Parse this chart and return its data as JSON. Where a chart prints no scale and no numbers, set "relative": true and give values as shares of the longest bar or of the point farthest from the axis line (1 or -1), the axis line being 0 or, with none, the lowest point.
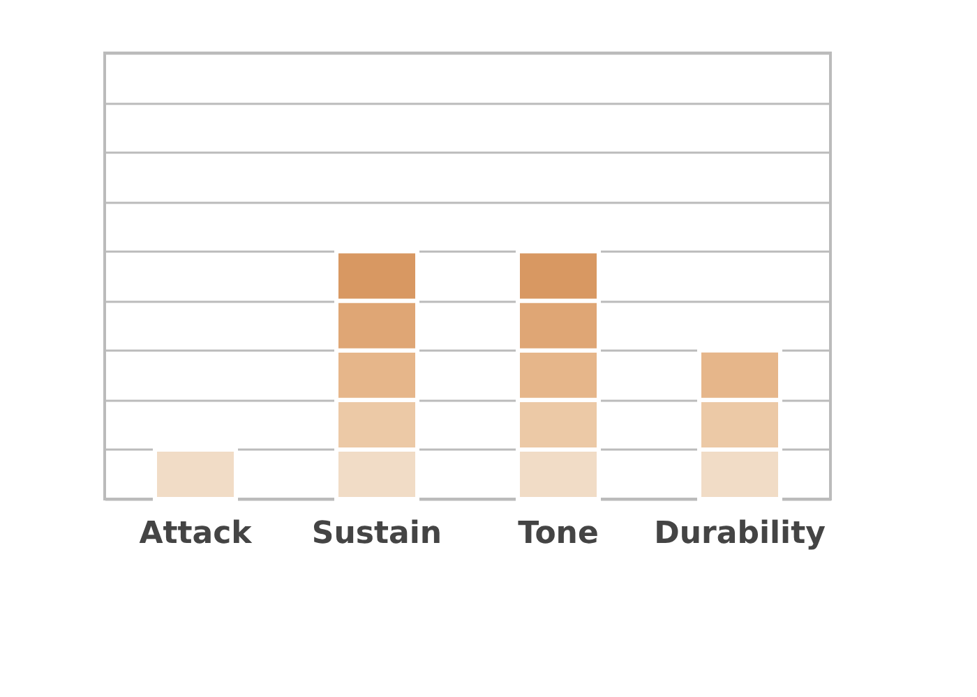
{
  "chart_data": {
    "type": "bar",
    "relative": true,
    "stacked": true,
    "grid": "y",
    "legend": false,
    "categories": [
      "Attack",
      "Sustain",
      "Tone",
      "Durability"
    ],
    "series": [
      {
        "color": "#f1dcc6",
        "values": [
          0.2,
          0.2,
          0.2,
          0.2
        ]
      },
      {
        "color": "#ecc9a6",
        "values": [
          null,
          0.2,
          0.2,
          0.2
        ]
      },
      {
        "color": "#e6b68a",
        "values": [
          null,
          0.2,
          0.2,
          0.2
        ]
      },
      {
        "color": "#dfa675",
        "values": [
          null,
          0.2,
          0.2,
          null
        ]
      },
      {
        "color": "#d89862",
        "values": [
          null,
          0.2,
          0.2,
          null
        ]
      }
    ]
  }
}
